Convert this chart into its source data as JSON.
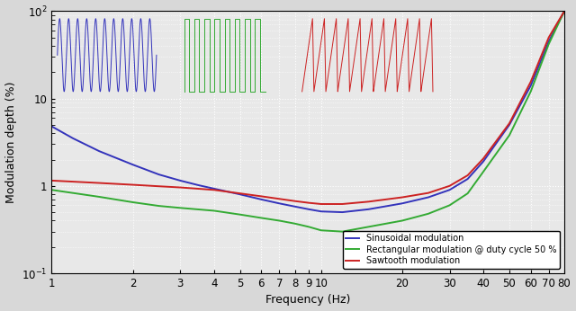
{
  "xlabel": "Frequency (Hz)",
  "ylabel": "Modulation depth (%)",
  "xlim": [
    1,
    80
  ],
  "ylim": [
    0.1,
    100
  ],
  "legend": [
    "Sinusoidal modulation",
    "Rectangular modulation @ duty cycle 50 %",
    "Sawtooth modulation"
  ],
  "colors": {
    "blue": "#3333BB",
    "green": "#33AA33",
    "red": "#CC2222"
  },
  "sin_freq": [
    1.0,
    1.2,
    1.5,
    2.0,
    2.5,
    3.0,
    3.5,
    4.0,
    5.0,
    6.0,
    7.0,
    8.0,
    9.0,
    10.0,
    12.0,
    15.0,
    20.0,
    25.0,
    30.0,
    35.0,
    40.0,
    50.0,
    60.0,
    70.0,
    80.0
  ],
  "sin_depth": [
    4.8,
    3.5,
    2.5,
    1.75,
    1.35,
    1.15,
    1.02,
    0.93,
    0.8,
    0.7,
    0.63,
    0.58,
    0.54,
    0.51,
    0.5,
    0.54,
    0.63,
    0.74,
    0.9,
    1.2,
    1.9,
    5.0,
    14.0,
    45.0,
    100.0
  ],
  "rect_freq": [
    1.0,
    1.5,
    2.0,
    2.5,
    3.0,
    4.0,
    5.0,
    6.0,
    7.0,
    8.0,
    9.0,
    10.0,
    12.0,
    15.0,
    20.0,
    25.0,
    30.0,
    35.0,
    40.0,
    50.0,
    60.0,
    70.0,
    80.0
  ],
  "rect_depth": [
    0.9,
    0.75,
    0.65,
    0.59,
    0.56,
    0.52,
    0.47,
    0.43,
    0.4,
    0.37,
    0.34,
    0.31,
    0.3,
    0.34,
    0.4,
    0.48,
    0.6,
    0.82,
    1.45,
    3.8,
    12.0,
    42.0,
    100.0
  ],
  "saw_freq": [
    1.0,
    1.5,
    2.0,
    2.5,
    3.0,
    4.0,
    5.0,
    6.0,
    7.0,
    8.0,
    9.0,
    10.0,
    12.0,
    15.0,
    20.0,
    25.0,
    30.0,
    35.0,
    40.0,
    50.0,
    60.0,
    70.0,
    80.0
  ],
  "saw_depth": [
    1.15,
    1.08,
    1.03,
    0.99,
    0.96,
    0.9,
    0.82,
    0.76,
    0.71,
    0.67,
    0.64,
    0.62,
    0.62,
    0.66,
    0.74,
    0.83,
    1.0,
    1.32,
    2.05,
    5.2,
    15.5,
    50.0,
    100.0
  ],
  "bg_color": "#e8e8e8",
  "sine_illu": {
    "x_start": 1.05,
    "x_end": 2.45,
    "y_lo": 12,
    "y_hi": 82,
    "n_cycles": 11
  },
  "rect_illu": {
    "x_start": 3.1,
    "x_end": 6.2,
    "y_lo": 12,
    "y_hi": 82,
    "n_cycles": 8
  },
  "saw_illu": {
    "x_start": 8.5,
    "x_end": 26.0,
    "y_lo": 12,
    "y_hi": 82,
    "n_cycles": 11
  }
}
